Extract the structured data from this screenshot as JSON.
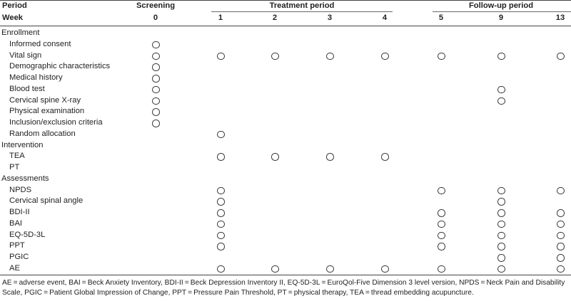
{
  "header": {
    "period_label": "Period",
    "week_label": "Week",
    "screening_label": "Screening",
    "treatment_label": "Treatment period",
    "followup_label": "Follow-up period",
    "weeks": [
      "0",
      "1",
      "2",
      "3",
      "4",
      "5",
      "9",
      "13"
    ]
  },
  "rows": [
    {
      "label": "Enrollment",
      "indent": false,
      "marks": [
        false,
        false,
        false,
        false,
        false,
        false,
        false,
        false
      ]
    },
    {
      "label": "Informed consent",
      "indent": true,
      "marks": [
        true,
        false,
        false,
        false,
        false,
        false,
        false,
        false
      ]
    },
    {
      "label": "Vital sign",
      "indent": true,
      "marks": [
        true,
        true,
        true,
        true,
        true,
        true,
        true,
        true
      ]
    },
    {
      "label": "Demographic characteristics",
      "indent": true,
      "marks": [
        true,
        false,
        false,
        false,
        false,
        false,
        false,
        false
      ]
    },
    {
      "label": "Medical history",
      "indent": true,
      "marks": [
        true,
        false,
        false,
        false,
        false,
        false,
        false,
        false
      ]
    },
    {
      "label": "Blood test",
      "indent": true,
      "marks": [
        true,
        false,
        false,
        false,
        false,
        false,
        true,
        false
      ]
    },
    {
      "label": "Cervical spine X-ray",
      "indent": true,
      "marks": [
        true,
        false,
        false,
        false,
        false,
        false,
        true,
        false
      ]
    },
    {
      "label": "Physical examination",
      "indent": true,
      "marks": [
        true,
        false,
        false,
        false,
        false,
        false,
        false,
        false
      ]
    },
    {
      "label": "Inclusion/exclusion criteria",
      "indent": true,
      "marks": [
        true,
        false,
        false,
        false,
        false,
        false,
        false,
        false
      ]
    },
    {
      "label": "Random allocation",
      "indent": true,
      "marks": [
        false,
        true,
        false,
        false,
        false,
        false,
        false,
        false
      ]
    },
    {
      "label": "Intervention",
      "indent": false,
      "marks": [
        false,
        false,
        false,
        false,
        false,
        false,
        false,
        false
      ]
    },
    {
      "label": "TEA",
      "indent": true,
      "marks": [
        false,
        true,
        true,
        true,
        true,
        false,
        false,
        false
      ]
    },
    {
      "label": "PT",
      "indent": true,
      "marks": [
        false,
        false,
        false,
        false,
        false,
        false,
        false,
        false
      ]
    },
    {
      "label": "Assessments",
      "indent": false,
      "marks": [
        false,
        false,
        false,
        false,
        false,
        false,
        false,
        false
      ]
    },
    {
      "label": "NPDS",
      "indent": true,
      "marks": [
        false,
        true,
        false,
        false,
        false,
        true,
        true,
        true
      ]
    },
    {
      "label": "Cervical spinal angle",
      "indent": true,
      "marks": [
        false,
        true,
        false,
        false,
        false,
        false,
        true,
        false
      ]
    },
    {
      "label": "BDI-II",
      "indent": true,
      "marks": [
        false,
        true,
        false,
        false,
        false,
        true,
        true,
        true
      ]
    },
    {
      "label": "BAI",
      "indent": true,
      "marks": [
        false,
        true,
        false,
        false,
        false,
        true,
        true,
        true
      ]
    },
    {
      "label": "EQ-5D-3L",
      "indent": true,
      "marks": [
        false,
        true,
        false,
        false,
        false,
        true,
        true,
        true
      ]
    },
    {
      "label": "PPT",
      "indent": true,
      "marks": [
        false,
        true,
        false,
        false,
        false,
        true,
        true,
        true
      ]
    },
    {
      "label": "PGIC",
      "indent": true,
      "marks": [
        false,
        false,
        false,
        false,
        false,
        false,
        true,
        true
      ]
    },
    {
      "label": "AE",
      "indent": true,
      "marks": [
        false,
        true,
        true,
        true,
        true,
        true,
        true,
        true
      ]
    }
  ],
  "footnote": "AE = adverse event, BAI = Beck Anxiety Inventory, BDI-II = Beck Depression Inventory II, EQ-5D-3L = EuroQol-Five Dimension 3 level version, NPDS = Neck Pain and Disability Scale, PGIC = Patient Global Impression of Change, PPT = Pressure Pain Threshold, PT = physical therapy, TEA = thread embedding acupuncture."
}
